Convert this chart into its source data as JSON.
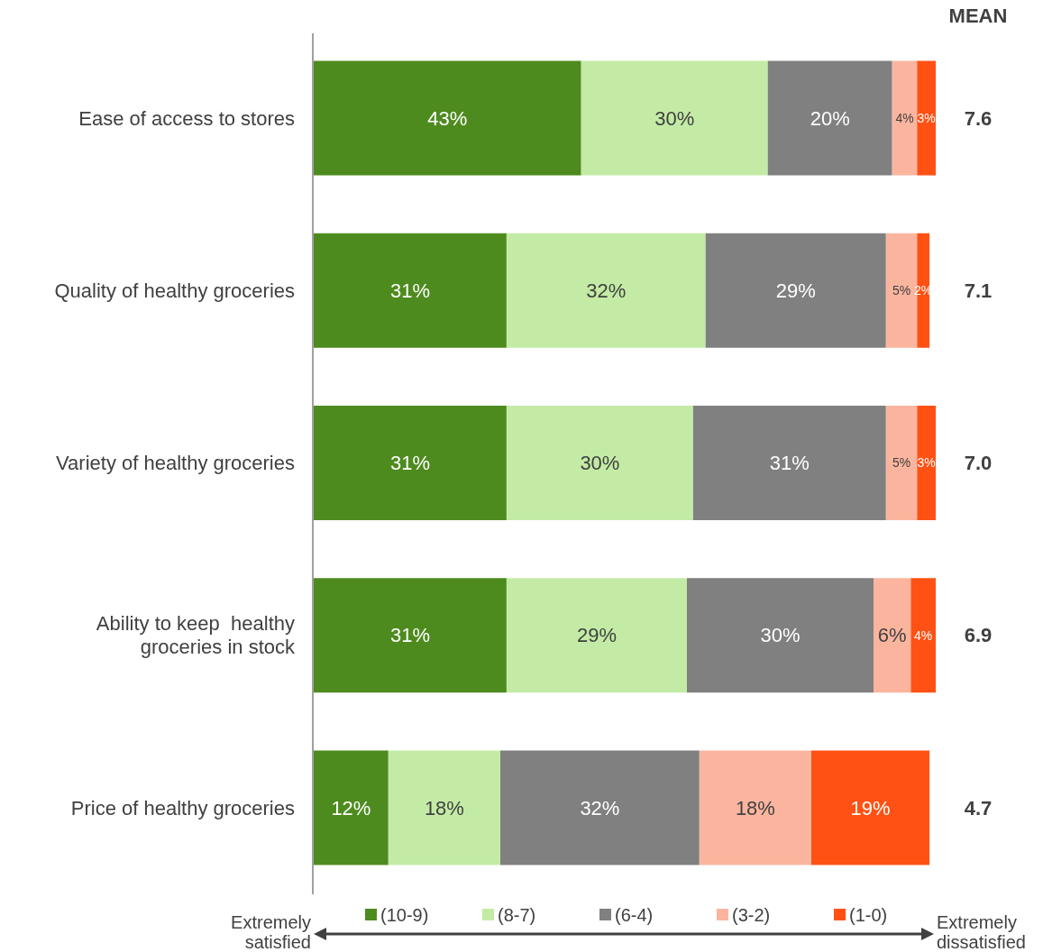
{
  "chart_data": {
    "type": "bar",
    "orientation": "horizontal",
    "stacked": true,
    "legend": "bottom",
    "categories": [
      "Ease of access to stores",
      "Quality of healthy groceries",
      "Variety of healthy groceries",
      "Ability to keep  healthy groceries in stock",
      "Price of healthy groceries"
    ],
    "series": [
      {
        "name": "(10-9)",
        "color": "#4e8b1f",
        "values": [
          43,
          31,
          31,
          31,
          12
        ],
        "value_labels": [
          "43%",
          "31%",
          "31%",
          "31%",
          "12%"
        ]
      },
      {
        "name": "(8-7)",
        "color": "#c3eba5",
        "values": [
          30,
          32,
          30,
          29,
          18
        ],
        "value_labels": [
          "30%",
          "32%",
          "30%",
          "29%",
          "18%"
        ]
      },
      {
        "name": "(6-4)",
        "color": "#808080",
        "values": [
          20,
          29,
          31,
          30,
          32
        ],
        "value_labels": [
          "20%",
          "29%",
          "31%",
          "30%",
          "32%"
        ]
      },
      {
        "name": "(3-2)",
        "color": "#fbb59f",
        "values": [
          4,
          5,
          5,
          6,
          18
        ],
        "value_labels": [
          "4%",
          "5%",
          "5%",
          "6%",
          "18%"
        ]
      },
      {
        "name": "(1-0)",
        "color": "#ff5114",
        "values": [
          3,
          2,
          3,
          4,
          19
        ],
        "value_labels": [
          "3%",
          "2%",
          "3%",
          "4%",
          "19%"
        ]
      }
    ],
    "annotations": [
      "MEAN",
      "7.6",
      "7.1",
      "7.0",
      "6.9",
      "4.7",
      "Extremely satisfied",
      "Extremely dissatisfied"
    ]
  }
}
